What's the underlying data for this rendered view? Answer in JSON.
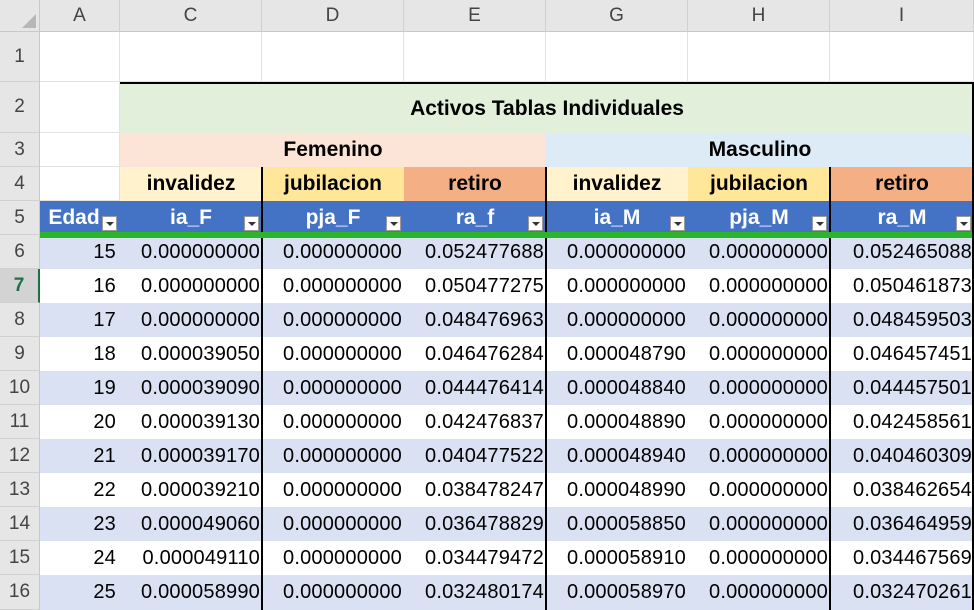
{
  "columns": [
    "A",
    "C",
    "D",
    "E",
    "G",
    "H",
    "I"
  ],
  "rows": [
    "1",
    "2",
    "3",
    "4",
    "5",
    "6",
    "7",
    "8",
    "9",
    "10",
    "11",
    "12",
    "13",
    "14",
    "15",
    "16"
  ],
  "title": "Activos Tablas Individuales",
  "groups": {
    "female": "Femenino",
    "male": "Masculino"
  },
  "subheaders": [
    "invalidez",
    "jubilacion",
    "retiro",
    "invalidez",
    "jubilacion",
    "retiro"
  ],
  "table_headers": [
    "Edad",
    "ia_F",
    "pja_F",
    "ra_f",
    "ia_M",
    "pja_M",
    "ra_M"
  ],
  "data_rows": [
    [
      "15",
      "0.000000000",
      "0.000000000",
      "0.052477688",
      "0.000000000",
      "0.000000000",
      "0.052465088"
    ],
    [
      "16",
      "0.000000000",
      "0.000000000",
      "0.050477275",
      "0.000000000",
      "0.000000000",
      "0.050461873"
    ],
    [
      "17",
      "0.000000000",
      "0.000000000",
      "0.048476963",
      "0.000000000",
      "0.000000000",
      "0.048459503"
    ],
    [
      "18",
      "0.000039050",
      "0.000000000",
      "0.046476284",
      "0.000048790",
      "0.000000000",
      "0.046457451"
    ],
    [
      "19",
      "0.000039090",
      "0.000000000",
      "0.044476414",
      "0.000048840",
      "0.000000000",
      "0.044457501"
    ],
    [
      "20",
      "0.000039130",
      "0.000000000",
      "0.042476837",
      "0.000048890",
      "0.000000000",
      "0.042458561"
    ],
    [
      "21",
      "0.000039170",
      "0.000000000",
      "0.040477522",
      "0.000048940",
      "0.000000000",
      "0.040460309"
    ],
    [
      "22",
      "0.000039210",
      "0.000000000",
      "0.038478247",
      "0.000048990",
      "0.000000000",
      "0.038462654"
    ],
    [
      "23",
      "0.000049060",
      "0.000000000",
      "0.036478829",
      "0.000058850",
      "0.000000000",
      "0.036464959"
    ],
    [
      "24",
      "0.000049110",
      "0.000000000",
      "0.034479472",
      "0.000058910",
      "0.000000000",
      "0.034467569"
    ],
    [
      "25",
      "0.000058990",
      "0.000000000",
      "0.032480174",
      "0.000058970",
      "0.000000000",
      "0.032470261"
    ]
  ],
  "colors": {
    "title_bg": "#e2efda",
    "female_bg": "#fce4d6",
    "male_bg": "#ddebf7",
    "invalidez_bg": "#fff2cc",
    "jubilacion_bg": "#ffe699",
    "retiro_bg": "#f4b084",
    "header_bg": "#4472c4",
    "band_bg": "#d9e1f2",
    "selection": "#2ab52a"
  },
  "active_row": "7"
}
